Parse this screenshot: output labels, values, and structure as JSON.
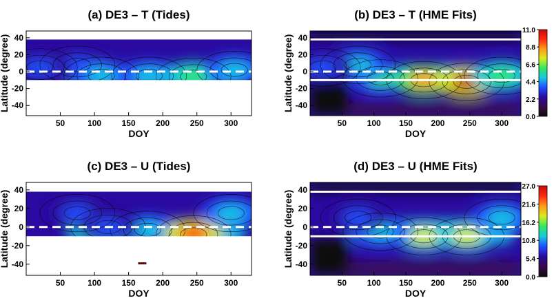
{
  "colors": {
    "background": "#ffffff",
    "contour_line": "#000000",
    "reference_line": "#ffffff",
    "colormap": [
      "#0d0d0d",
      "#3a0a4a",
      "#2a0aa0",
      "#2050ff",
      "#18c8e0",
      "#30e860",
      "#d8ec20",
      "#ff9a18",
      "#ff2a10",
      "#c80a0a"
    ]
  },
  "chart_data": [
    {
      "type": "heatmap",
      "panel": "a",
      "title": "(a) DE3 – T (Tides)",
      "xlabel": "DOY",
      "ylabel": "Latitude (degree)",
      "xlim": [
        0,
        330
      ],
      "ylim": [
        -52,
        48
      ],
      "xticks": [
        50,
        100,
        150,
        200,
        250,
        300
      ],
      "yticks": [
        -40,
        -20,
        0,
        20,
        40
      ],
      "data_lat_range": [
        -10,
        38
      ],
      "dashed_line_lat": [
        0
      ],
      "solid_line_lat": [],
      "colorbar": null,
      "cmax": 11.0,
      "features": [
        {
          "doy": 75,
          "lat": 8,
          "value": 4.0
        },
        {
          "doy": 110,
          "lat": -5,
          "value": 5.0
        },
        {
          "doy": 180,
          "lat": -5,
          "value": 6.0
        },
        {
          "doy": 245,
          "lat": -6,
          "value": 7.0
        },
        {
          "doy": 305,
          "lat": 2,
          "value": 5.0
        },
        {
          "doy": 20,
          "lat": 5,
          "value": 4.0
        }
      ]
    },
    {
      "type": "heatmap",
      "panel": "b",
      "title": "(b) DE3 – T (HME Fits)",
      "xlabel": "DOY",
      "ylabel": "Latitude (degree)",
      "xlim": [
        0,
        330
      ],
      "ylim": [
        -52,
        48
      ],
      "xticks": [
        50,
        100,
        150,
        200,
        250,
        300
      ],
      "yticks": [
        -40,
        -20,
        0,
        20,
        40
      ],
      "data_lat_range": [
        -52,
        48
      ],
      "dashed_line_lat": [
        0
      ],
      "solid_line_lat": [
        38,
        -10
      ],
      "colorbar": {
        "ticks": [
          "11.0",
          "8.8",
          "6.6",
          "4.4",
          "2.2",
          "0.0"
        ],
        "min": 0.0,
        "max": 11.0
      },
      "cmax": 11.0,
      "features": [
        {
          "doy": 110,
          "lat": -8,
          "value": 6.5
        },
        {
          "doy": 178,
          "lat": -10,
          "value": 9.0
        },
        {
          "doy": 245,
          "lat": -12,
          "value": 11.0
        },
        {
          "doy": 300,
          "lat": -5,
          "value": 7.0
        },
        {
          "doy": 75,
          "lat": 8,
          "value": 5.0
        },
        {
          "doy": 20,
          "lat": 5,
          "value": 4.0
        }
      ]
    },
    {
      "type": "heatmap",
      "panel": "c",
      "title": "(c) DE3 – U  (Tides)",
      "xlabel": "DOY",
      "ylabel": "Latitude (degree)",
      "xlim": [
        0,
        330
      ],
      "ylim": [
        -52,
        48
      ],
      "xticks": [
        50,
        100,
        150,
        200,
        250,
        300
      ],
      "yticks": [
        -40,
        -20,
        0,
        20,
        40
      ],
      "data_lat_range": [
        -10,
        38
      ],
      "dashed_line_lat": [
        0
      ],
      "solid_line_lat": [],
      "colorbar": null,
      "cmax": 27.0,
      "features": [
        {
          "doy": 75,
          "lat": 15,
          "value": 10.0
        },
        {
          "doy": 178,
          "lat": -3,
          "value": 14.0
        },
        {
          "doy": 245,
          "lat": -8,
          "value": 25.0
        },
        {
          "doy": 300,
          "lat": 15,
          "value": 12.0
        },
        {
          "doy": 120,
          "lat": 0,
          "value": 10.0
        }
      ]
    },
    {
      "type": "heatmap",
      "panel": "d",
      "title": "(d) DE3 – U  (HME Fits)",
      "xlabel": "DOY",
      "ylabel": "Latitude (degree)",
      "xlim": [
        0,
        330
      ],
      "ylim": [
        -52,
        48
      ],
      "xticks": [
        50,
        100,
        150,
        200,
        250,
        300
      ],
      "yticks": [
        -40,
        -20,
        0,
        20,
        40
      ],
      "data_lat_range": [
        -52,
        48
      ],
      "dashed_line_lat": [
        0
      ],
      "solid_line_lat": [
        38,
        -10
      ],
      "colorbar": {
        "ticks": [
          "27.0",
          "21.6",
          "16.2",
          "10.8",
          "5.4",
          "0.0"
        ],
        "min": 0.0,
        "max": 27.0
      },
      "cmax": 27.0,
      "features": [
        {
          "doy": 178,
          "lat": -10,
          "value": 18.0
        },
        {
          "doy": 245,
          "lat": -10,
          "value": 19.0
        },
        {
          "doy": 110,
          "lat": -5,
          "value": 14.0
        },
        {
          "doy": 300,
          "lat": 10,
          "value": 14.0
        },
        {
          "doy": 75,
          "lat": 10,
          "value": 11.0
        }
      ]
    }
  ]
}
